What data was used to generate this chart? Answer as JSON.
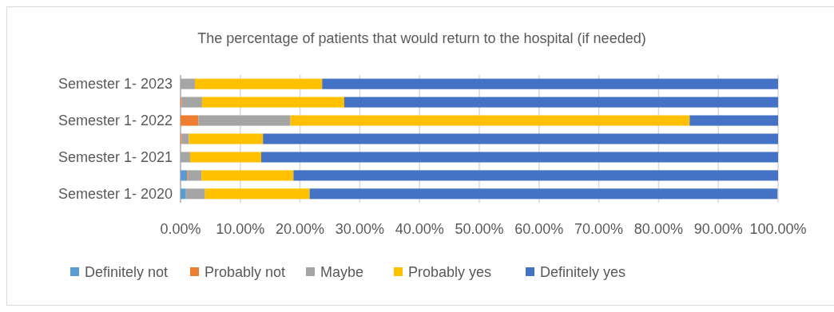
{
  "chart_data": {
    "type": "bar",
    "orientation": "horizontal",
    "stacked": true,
    "title": "The percentage of patients that would return to the hospital (if needed)",
    "categories": [
      "Semester 1- 2023",
      null,
      "Semester 1- 2022",
      null,
      "Semester 1- 2021",
      null,
      "Semester 1- 2020"
    ],
    "series": [
      {
        "name": "Definitely not",
        "color": "#5b9bd5",
        "values": [
          0,
          0,
          0,
          0,
          0,
          1.1,
          0.9
        ]
      },
      {
        "name": "Probably not",
        "color": "#ed7d31",
        "values": [
          0,
          0.2,
          3.0,
          0.2,
          0,
          0.2,
          null
        ]
      },
      {
        "name": "Maybe",
        "color": "#a5a5a5",
        "values": [
          2.4,
          3.4,
          15.4,
          1.2,
          1.6,
          2.2,
          3.2
        ]
      },
      {
        "name": "Probably yes",
        "color": "#ffc000",
        "values": [
          21.3,
          23.8,
          66.8,
          12.4,
          11.9,
          15.4,
          17.5
        ]
      },
      {
        "name": "Definitely yes",
        "color": "#4472c4",
        "values": [
          76.3,
          72.6,
          14.8,
          86.2,
          86.5,
          81.1,
          78.3
        ]
      }
    ],
    "xlim": [
      0,
      100
    ],
    "xticks": [
      {
        "value": 0,
        "label": "0.00%"
      },
      {
        "value": 10,
        "label": "10.00%"
      },
      {
        "value": 20,
        "label": "20.00%"
      },
      {
        "value": 30,
        "label": "30.00%"
      },
      {
        "value": 40,
        "label": "40.00%"
      },
      {
        "value": 50,
        "label": "50.00%"
      },
      {
        "value": 60,
        "label": "60.00%"
      },
      {
        "value": 70,
        "label": "70.00%"
      },
      {
        "value": 80,
        "label": "80.00%"
      },
      {
        "value": 90,
        "label": "90.00%"
      },
      {
        "value": 100,
        "label": "100.00%"
      }
    ],
    "grid": "x",
    "legend": "bottom"
  }
}
